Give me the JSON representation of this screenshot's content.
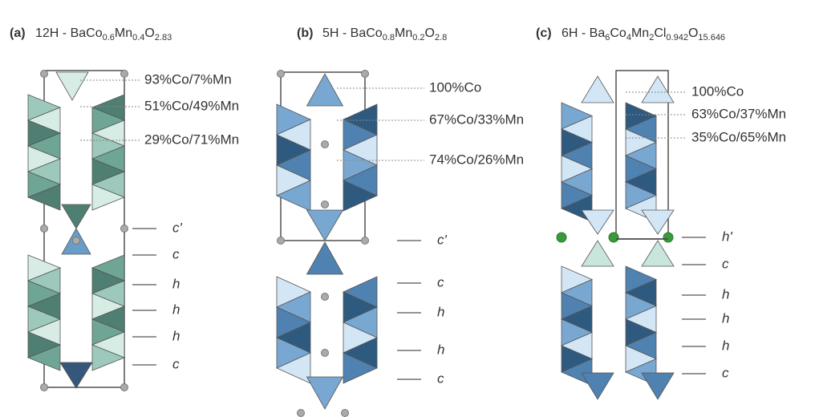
{
  "panels": [
    {
      "label": "(a)",
      "title_parts": [
        "12H - BaCo",
        "0.6",
        "Mn",
        "0.4",
        "O",
        "2.83"
      ],
      "sites": [
        "93%Co/7%Mn",
        "51%Co/49%Mn",
        "29%Co/71%Mn"
      ],
      "stacking": [
        "c'",
        "c",
        "h",
        "h",
        "h",
        "c"
      ]
    },
    {
      "label": "(b)",
      "title_parts": [
        "5H - BaCo",
        "0.8",
        "Mn",
        "0.2",
        "O",
        "2.8"
      ],
      "sites": [
        "100%Co",
        "67%Co/33%Mn",
        "74%Co/26%Mn"
      ],
      "stacking": [
        "c'",
        "c",
        "h",
        "h",
        "c"
      ]
    },
    {
      "label": "(c)",
      "title_parts": [
        "6H - Ba",
        "6",
        "Co",
        "4",
        "Mn",
        "2",
        "Cl",
        "0.942",
        "O",
        "15.646"
      ],
      "sites": [
        "100%Co",
        "63%Co/37%Mn",
        "35%Co/65%Mn"
      ],
      "stacking": [
        "h'",
        "c",
        "h",
        "h",
        "h",
        "c"
      ]
    }
  ]
}
